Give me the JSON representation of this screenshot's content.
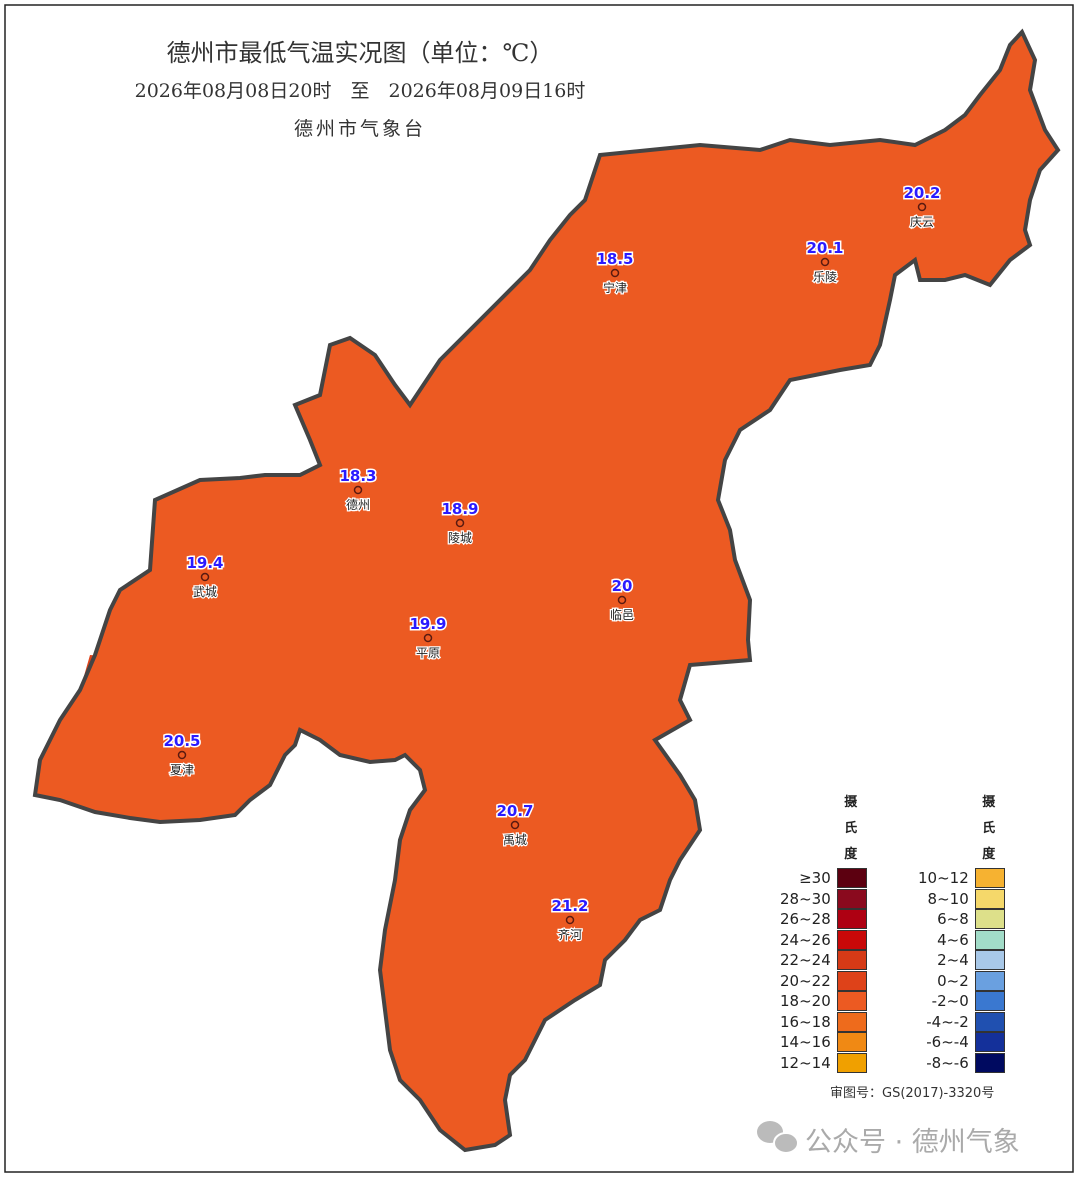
{
  "header": {
    "title": "德州市最低气温实况图（单位：℃）",
    "period": "2026年08月08日20时　至　2026年08月09日16时",
    "issuer": "德州市气象台"
  },
  "stations": [
    {
      "name": "宁津",
      "value": 18.5
    },
    {
      "name": "乐陵",
      "value": 20.1
    },
    {
      "name": "庆云",
      "value": 20.2
    },
    {
      "name": "德州",
      "value": 18.3
    },
    {
      "name": "陵城",
      "value": 18.9
    },
    {
      "name": "武城",
      "value": 19.4
    },
    {
      "name": "平原",
      "value": 19.9
    },
    {
      "name": "临邑",
      "value": 20
    },
    {
      "name": "夏津",
      "value": 20.5
    },
    {
      "name": "禹城",
      "value": 20.7
    },
    {
      "name": "齐河",
      "value": 21.2
    }
  ],
  "legend": {
    "columns": [
      {
        "title": "摄氏度",
        "items": [
          {
            "label": "≥30",
            "color": "#5c0010"
          },
          {
            "label": "28~30",
            "color": "#8a0a1e"
          },
          {
            "label": "26~28",
            "color": "#ae0012"
          },
          {
            "label": "24~26",
            "color": "#c80808"
          },
          {
            "label": "22~24",
            "color": "#d63a16"
          },
          {
            "label": "20~22",
            "color": "#de4219"
          },
          {
            "label": "18~20",
            "color": "#ec5a22"
          },
          {
            "label": "16~18",
            "color": "#ee6b1c"
          },
          {
            "label": "14~16",
            "color": "#f08914"
          },
          {
            "label": "12~14",
            "color": "#f0a000"
          }
        ]
      },
      {
        "title": "摄氏度",
        "items": [
          {
            "label": "10~12",
            "color": "#f6b231"
          },
          {
            "label": "8~10",
            "color": "#f5d86a"
          },
          {
            "label": "6~8",
            "color": "#dde08a"
          },
          {
            "label": "4~6",
            "color": "#a2dcc8"
          },
          {
            "label": "2~4",
            "color": "#a8c8e8"
          },
          {
            "label": "0~2",
            "color": "#6aa0e0"
          },
          {
            "label": "-2~0",
            "color": "#3a78d0"
          },
          {
            "label": "-4~-2",
            "color": "#2050b0"
          },
          {
            "label": "-6~-4",
            "color": "#14309a"
          },
          {
            "label": "-8~-6",
            "color": "#000a60"
          }
        ]
      }
    ]
  },
  "footer": {
    "review_number": "审图号：GS(2017)-3320号",
    "watermark": "公众号 · 德州气象"
  }
}
